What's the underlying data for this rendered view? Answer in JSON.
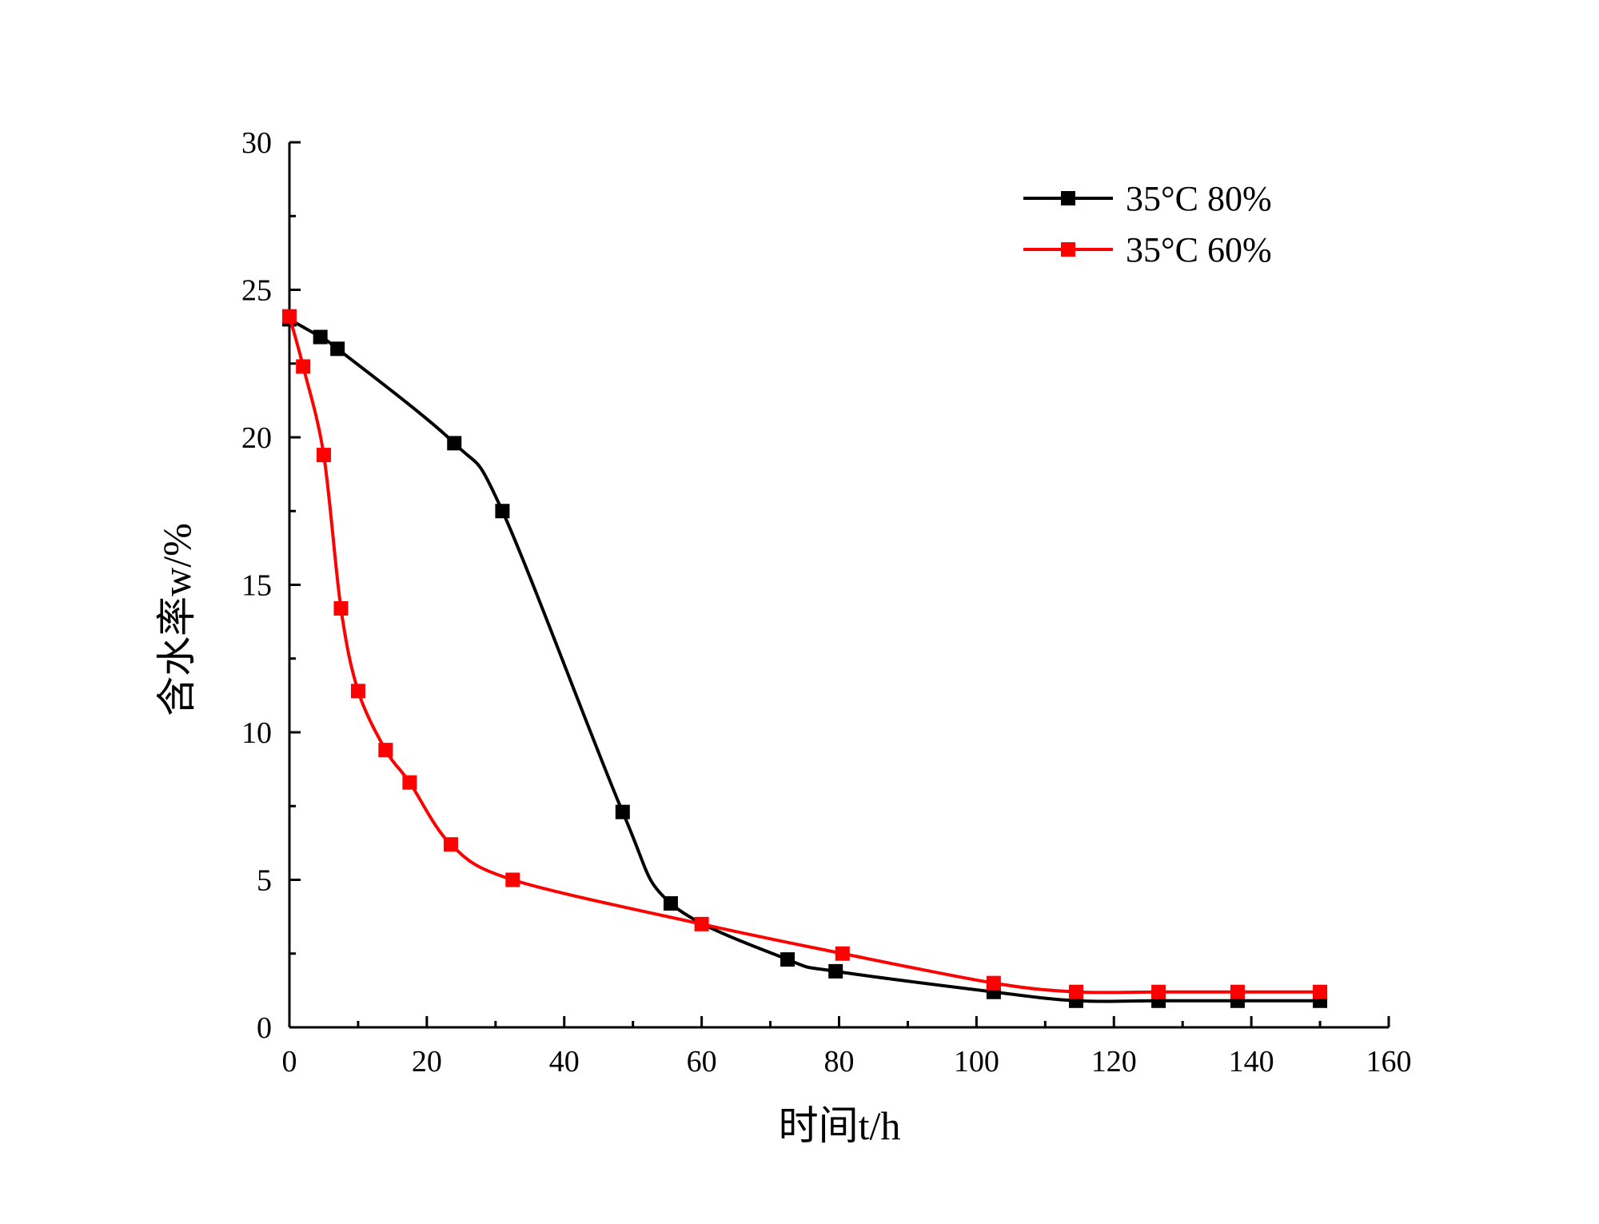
{
  "chart_data": {
    "type": "line",
    "title": "",
    "xlabel": "时间t/h",
    "ylabel": "含水率w/%",
    "xlim": [
      0,
      160
    ],
    "ylim": [
      0,
      30
    ],
    "xticks": [
      "0",
      "20",
      "40",
      "60",
      "80",
      "100",
      "120",
      "140",
      "160"
    ],
    "yticks": [
      "0",
      "5",
      "10",
      "15",
      "20",
      "25",
      "30"
    ],
    "legend_position": "top-right",
    "grid": false,
    "series": [
      {
        "name": "35°C 80%",
        "color": "#000000",
        "marker": "square",
        "x": [
          0,
          4.5,
          7,
          24,
          31,
          48.5,
          55.5,
          72.5,
          79.5,
          102.5,
          114.5,
          126.5,
          138,
          150
        ],
        "y": [
          24.0,
          23.4,
          23.0,
          19.8,
          17.5,
          7.3,
          4.2,
          2.3,
          1.9,
          1.2,
          0.9,
          0.9,
          0.9,
          0.9
        ]
      },
      {
        "name": "35°C 60%",
        "color": "#ff0000",
        "marker": "square",
        "x": [
          0,
          2,
          5,
          7.5,
          10,
          14,
          17.5,
          23.5,
          32.5,
          60,
          80.5,
          102.5,
          114.5,
          126.5,
          138,
          150
        ],
        "y": [
          24.1,
          22.4,
          19.4,
          14.2,
          11.4,
          9.4,
          8.3,
          6.2,
          5.0,
          3.5,
          2.5,
          1.5,
          1.2,
          1.2,
          1.2,
          1.2
        ]
      }
    ]
  }
}
